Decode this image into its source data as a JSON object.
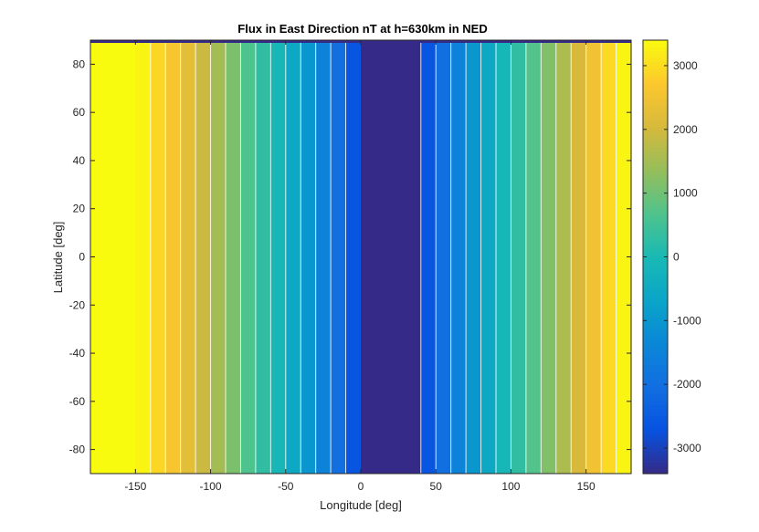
{
  "chart_data": {
    "type": "heatmap",
    "title": "Flux in East Direction nT at h=630km in NED",
    "xlabel": "Longitude [deg]",
    "ylabel": "Latitude [deg]",
    "xlim": [
      -180,
      180
    ],
    "ylim": [
      -90,
      90
    ],
    "xticks": [
      -150,
      -100,
      -50,
      0,
      50,
      100,
      150
    ],
    "yticks": [
      80,
      60,
      40,
      20,
      0,
      -20,
      -40,
      -60,
      -80
    ],
    "colorbar": {
      "colormap": "parula",
      "clim": [
        -3400,
        3400
      ],
      "ticks": [
        3000,
        2000,
        1000,
        0,
        -1000,
        -2000,
        -3000
      ]
    },
    "contour_levels_longitude": [
      -140,
      -130,
      -120,
      -110,
      -100,
      -90,
      -80,
      -70,
      -60,
      -50,
      -40,
      -30,
      -20,
      -10,
      40,
      50,
      60,
      70,
      80,
      90,
      100,
      110,
      120,
      130,
      140,
      150,
      160,
      170
    ],
    "bands": [
      {
        "lon_min": -180,
        "lon_max": -150,
        "value": 3400
      },
      {
        "lon_min": -150,
        "lon_max": -140,
        "value": 3310
      },
      {
        "lon_min": -140,
        "lon_max": -130,
        "value": 2900
      },
      {
        "lon_min": -130,
        "lon_max": -120,
        "value": 2600
      },
      {
        "lon_min": -120,
        "lon_max": -110,
        "value": 2250
      },
      {
        "lon_min": -110,
        "lon_max": -100,
        "value": 1900
      },
      {
        "lon_min": -100,
        "lon_max": -90,
        "value": 1500
      },
      {
        "lon_min": -90,
        "lon_max": -80,
        "value": 1100
      },
      {
        "lon_min": -80,
        "lon_max": -70,
        "value": 650
      },
      {
        "lon_min": -70,
        "lon_max": -60,
        "value": 300
      },
      {
        "lon_min": -60,
        "lon_max": -50,
        "value": -100
      },
      {
        "lon_min": -50,
        "lon_max": -40,
        "value": -550
      },
      {
        "lon_min": -40,
        "lon_max": -30,
        "value": -1000
      },
      {
        "lon_min": -30,
        "lon_max": -20,
        "value": -1500
      },
      {
        "lon_min": -20,
        "lon_max": -10,
        "value": -2000
      },
      {
        "lon_min": -10,
        "lon_max": 0,
        "value": -2650
      },
      {
        "lon_min": 0,
        "lon_max": 40,
        "value": -3400
      },
      {
        "lon_min": 40,
        "lon_max": 50,
        "value": -2650
      },
      {
        "lon_min": 50,
        "lon_max": 60,
        "value": -2000
      },
      {
        "lon_min": 60,
        "lon_max": 70,
        "value": -1500
      },
      {
        "lon_min": 70,
        "lon_max": 80,
        "value": -1000
      },
      {
        "lon_min": 80,
        "lon_max": 90,
        "value": -550
      },
      {
        "lon_min": 90,
        "lon_max": 100,
        "value": -100
      },
      {
        "lon_min": 100,
        "lon_max": 110,
        "value": 300
      },
      {
        "lon_min": 110,
        "lon_max": 120,
        "value": 700
      },
      {
        "lon_min": 120,
        "lon_max": 130,
        "value": 1150
      },
      {
        "lon_min": 130,
        "lon_max": 140,
        "value": 1600
      },
      {
        "lon_min": 140,
        "lon_max": 150,
        "value": 2050
      },
      {
        "lon_min": 150,
        "lon_max": 160,
        "value": 2500
      },
      {
        "lon_min": 160,
        "lon_max": 170,
        "value": 2950
      },
      {
        "lon_min": 170,
        "lon_max": 180,
        "value": 3310
      }
    ],
    "top_row_value": -3400,
    "grid": false
  }
}
